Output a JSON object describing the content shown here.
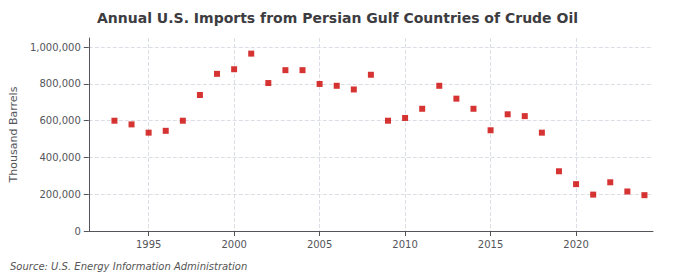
{
  "chart_data": {
    "type": "scatter",
    "title": "Annual U.S. Imports from Persian Gulf Countries of Crude Oil",
    "ylabel": "Thousand Barrels",
    "annotations": [
      "Source: U.S. Energy Information Administration"
    ],
    "x": [
      1993,
      1994,
      1995,
      1996,
      1997,
      1998,
      1999,
      2000,
      2001,
      2002,
      2003,
      2004,
      2005,
      2006,
      2007,
      2008,
      2009,
      2010,
      2011,
      2012,
      2013,
      2014,
      2015,
      2016,
      2017,
      2018,
      2019,
      2020,
      2021,
      2022,
      2023,
      2024
    ],
    "values": [
      600000,
      580000,
      535000,
      545000,
      600000,
      740000,
      855000,
      880000,
      965000,
      805000,
      875000,
      875000,
      800000,
      790000,
      770000,
      850000,
      600000,
      615000,
      665000,
      790000,
      720000,
      665000,
      548000,
      635000,
      625000,
      535000,
      325000,
      255000,
      198000,
      265000,
      215000,
      195000
    ],
    "color": "#cc0000",
    "marker": "square",
    "xlim": [
      1991.5,
      2024.5
    ],
    "xticks": [
      1995,
      2000,
      2005,
      2010,
      2015,
      2020
    ],
    "ylim": [
      0,
      1050000
    ],
    "yticks": [
      0,
      {
        "value": 200000,
        "label": "200,000"
      },
      {
        "value": 400000,
        "label": "400,000"
      },
      {
        "value": 600000,
        "label": "600,000"
      },
      {
        "value": 800000,
        "label": "800,000"
      },
      {
        "value": 1000000,
        "label": "1,000,000"
      }
    ],
    "grid": true
  }
}
